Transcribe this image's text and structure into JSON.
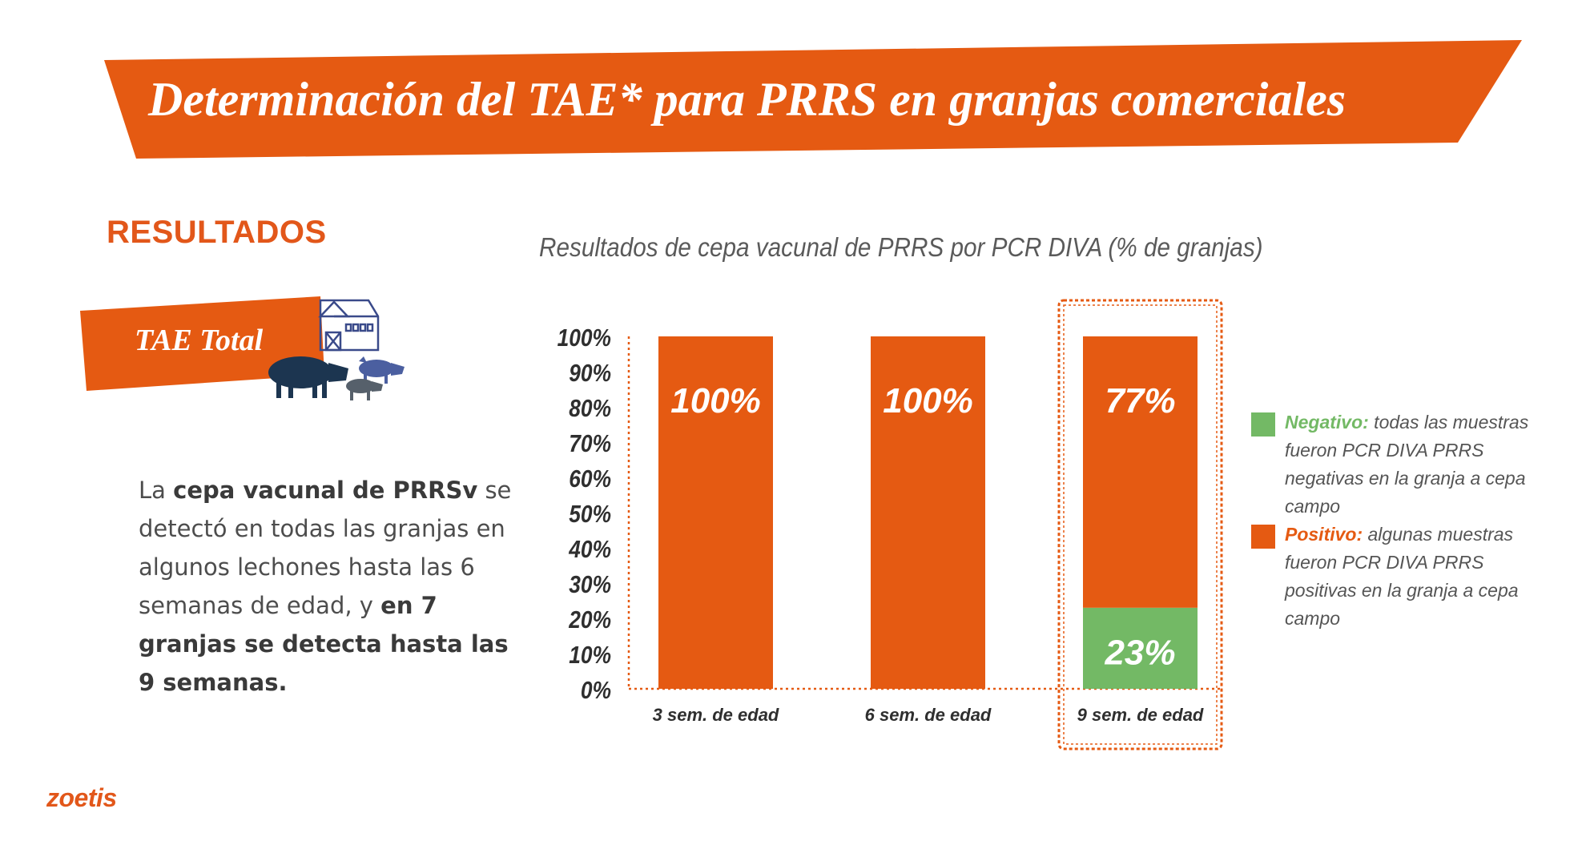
{
  "banner": {
    "title": "Determinación del TAE*  para PRRS en granjas comerciales"
  },
  "left": {
    "section_heading": "RESULTADOS",
    "tae_label": "TAE Total",
    "description": {
      "p1": "La ",
      "b1": "cepa vacunal de PRRSv",
      "p2": " se detectó en todas las granjas en algunos lechones hasta las 6 semanas de edad, y ",
      "b2": "en 7 granjas se detecta hasta las 9 semanas."
    }
  },
  "brand": {
    "logo_text": "zoetis"
  },
  "legend": [
    {
      "name": "Negativo:",
      "text": " todas las muestras fueron PCR DIVA PRRS negativas en la granja a cepa campo",
      "color": "#73b965"
    },
    {
      "name": "Positivo:",
      "text": " algunas muestras fueron PCR DIVA PRRS positivas en la granja a cepa campo",
      "color": "#e55a12"
    }
  ],
  "colors": {
    "accent": "#e55a12",
    "negative": "#73b965",
    "text_dark": "#4d4d4d"
  },
  "chart_data": {
    "type": "bar",
    "stacked": true,
    "title": "Resultados de cepa vacunal de PRRS por PCR DIVA (% de granjas)",
    "categories": [
      "3 sem. de edad",
      "6 sem. de edad",
      "9 sem. de edad"
    ],
    "series": [
      {
        "name": "Negativo",
        "values": [
          0,
          0,
          23
        ],
        "labels": [
          "",
          "",
          "23%"
        ],
        "color": "#73b965"
      },
      {
        "name": "Positivo",
        "values": [
          100,
          100,
          77
        ],
        "labels": [
          "100%",
          "100%",
          "77%"
        ],
        "color": "#e55a12"
      }
    ],
    "yticks": [
      "0%",
      "10%",
      "20%",
      "30%",
      "40%",
      "50%",
      "60%",
      "70%",
      "80%",
      "90%",
      "100%"
    ],
    "ylim": [
      0,
      100
    ],
    "highlighted_category": "9 sem. de edad",
    "grid": false,
    "legend_position": "right"
  }
}
